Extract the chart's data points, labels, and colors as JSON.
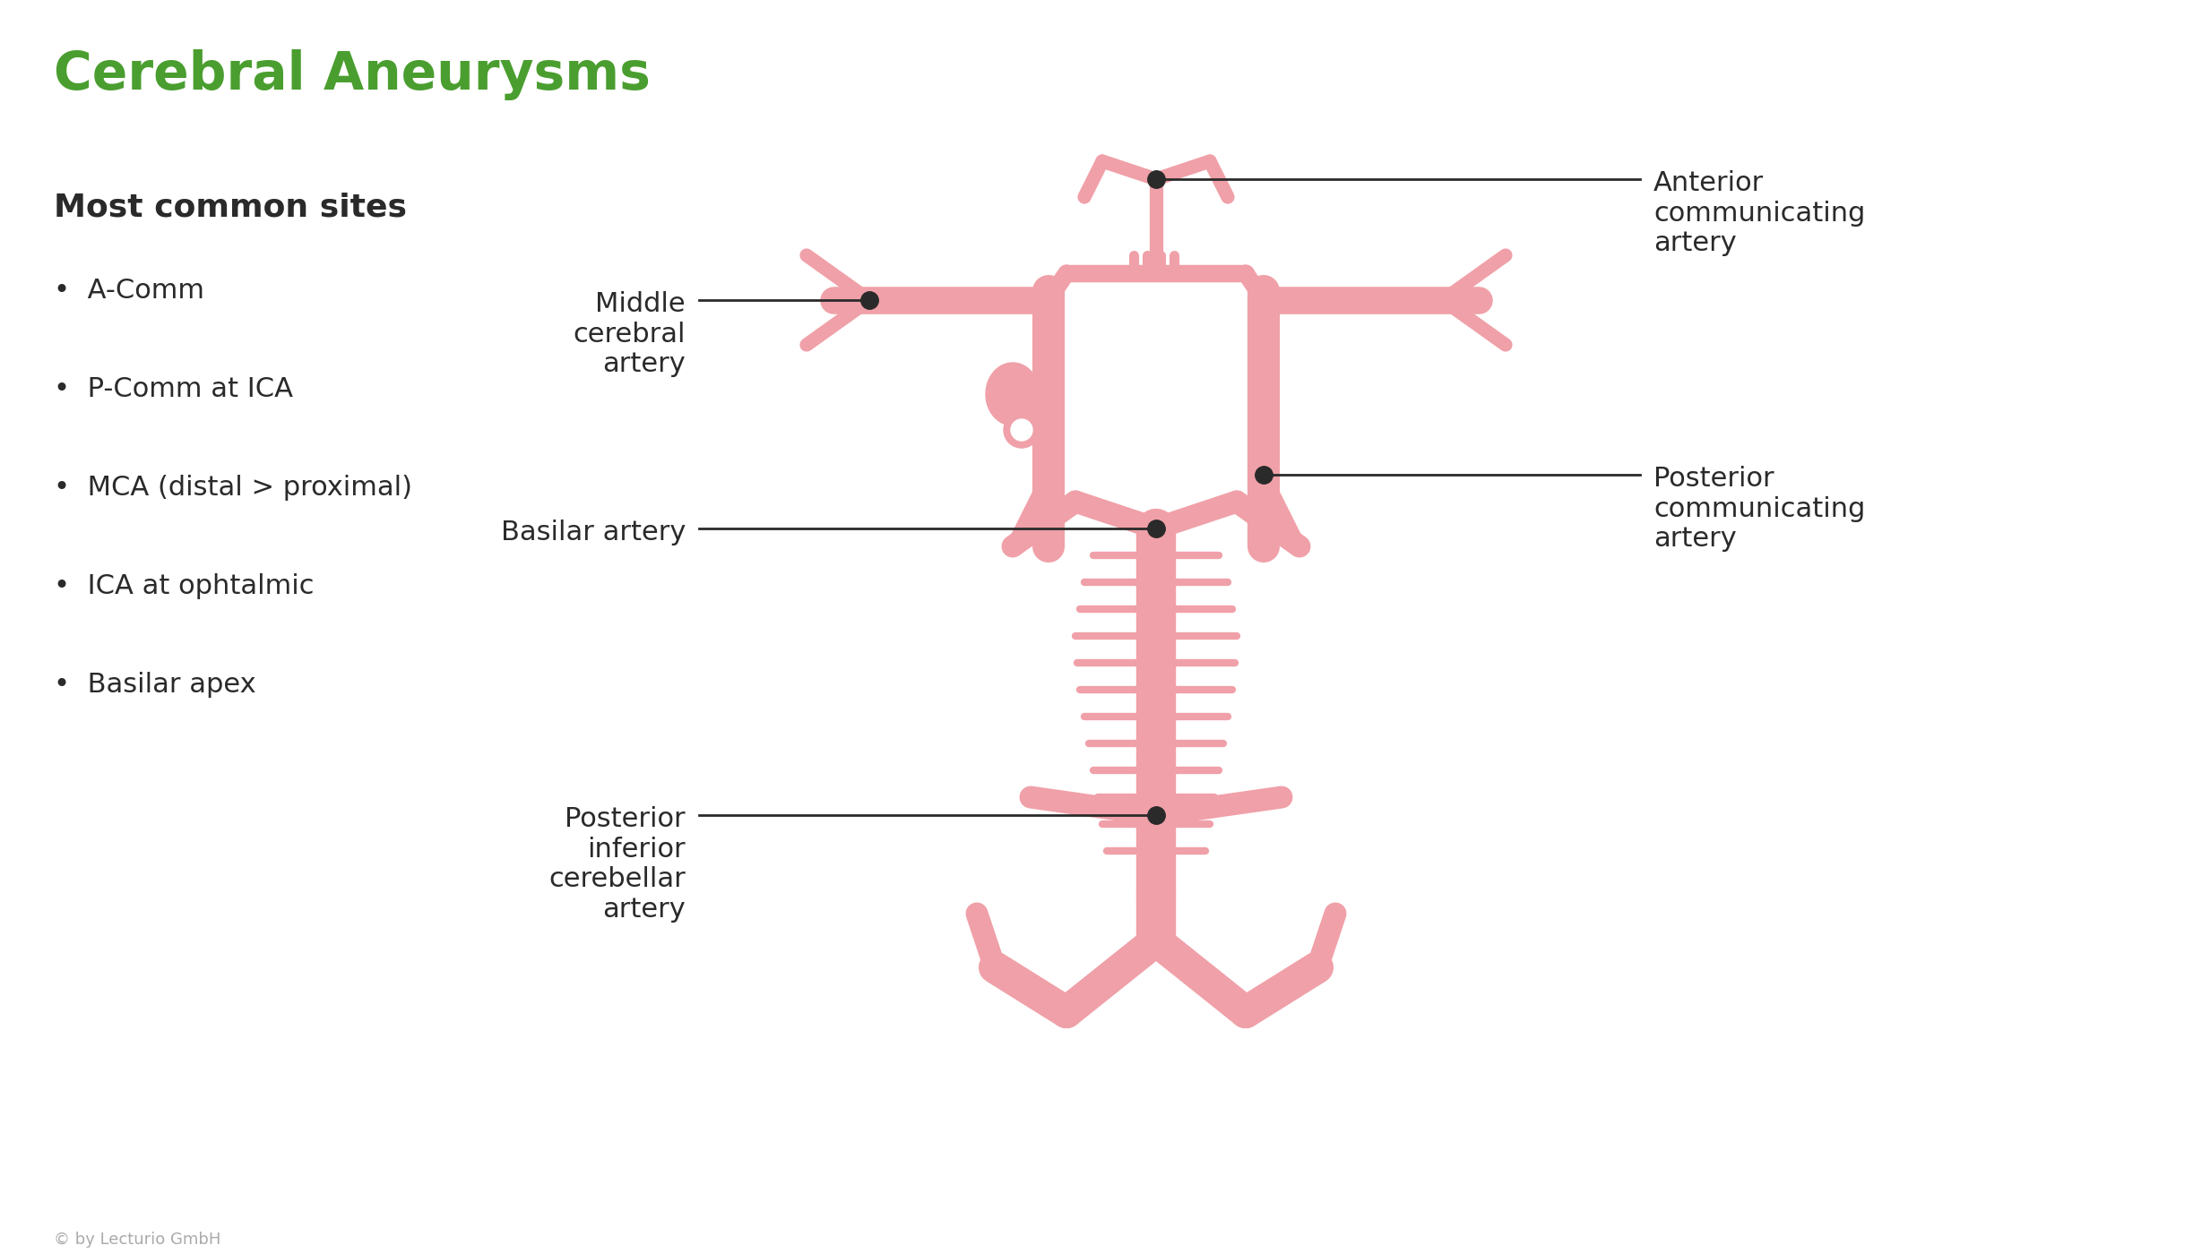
{
  "title": "Cerebral Aneurysms",
  "title_color": "#4a9e2f",
  "title_fontsize": 42,
  "bg_color": "#ffffff",
  "artery_color": "#f0a0a8",
  "artery_dark": "#e07888",
  "dot_color": "#2a2a2a",
  "line_color": "#2a2a2a",
  "text_color": "#2a2a2a",
  "left_header": "Most common sites",
  "left_items": [
    "A-Comm",
    "P-Comm at ICA",
    "MCA (distal > proximal)",
    "ICA at ophtalmic",
    "Basilar apex"
  ],
  "labels": {
    "middle_cerebral": "Middle\ncerebral\nartery",
    "anterior_comm": "Anterior\ncommunicating\nartery",
    "posterior_comm": "Posterior\ncommunicating\nartery",
    "basilar": "Basilar artery",
    "posterior_inferior": "Posterior\ninferior\ncerebellar\nartery"
  },
  "copyright": "© by Lecturio GmbH",
  "copyright_fontsize": 13,
  "copyright_color": "#aaaaaa"
}
